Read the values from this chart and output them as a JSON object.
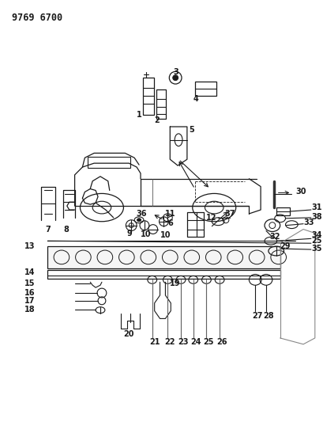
{
  "title": "9769 6700",
  "bg_color": "#ffffff",
  "line_color": "#1a1a1a",
  "fig_w": 4.1,
  "fig_h": 5.33,
  "dpi": 100
}
